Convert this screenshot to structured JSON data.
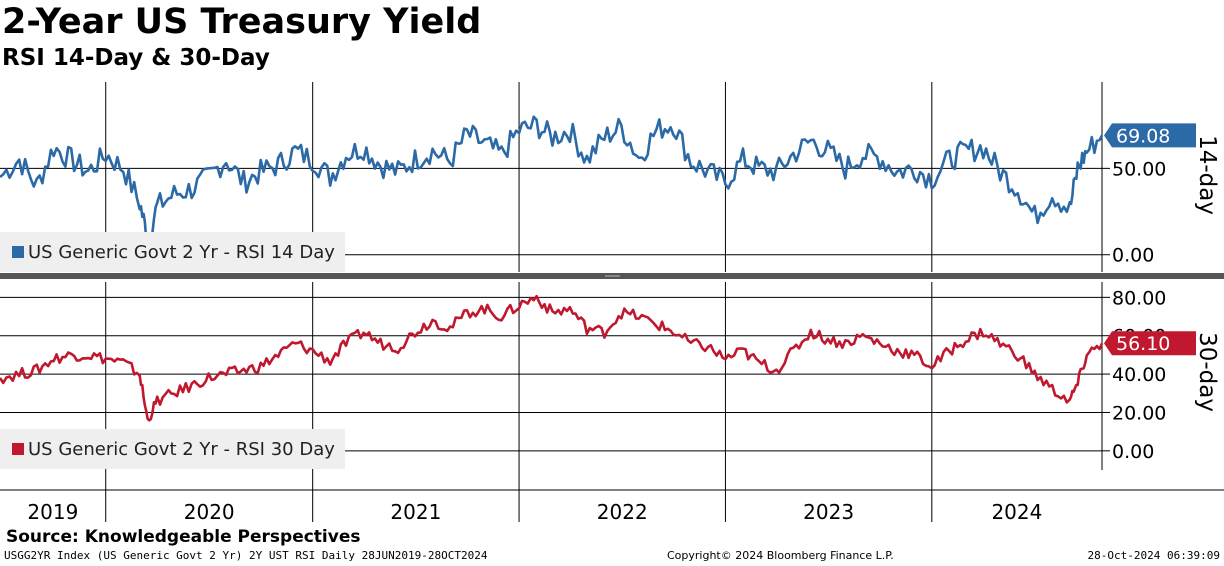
{
  "header": {
    "title": "2-Year US Treasury Yield",
    "subtitle": "RSI 14-Day & 30-Day"
  },
  "footer": {
    "source": "Source: Knowledgeable Perspectives",
    "meta": "USGG2YR Index (US Generic Govt 2 Yr) 2Y UST RSI  Daily 28JUN2019-28OCT2024",
    "copyright": "Copyright© 2024 Bloomberg Finance L.P.",
    "timestamp": "28-Oct-2024 06:39:09"
  },
  "colors": {
    "rsi14": "#2b6aa6",
    "rsi30": "#c0182e",
    "grid": "#000000"
  },
  "chart_data": [
    {
      "type": "line",
      "panel": "top",
      "ylabel": "14-day",
      "ylim": [
        -10,
        100
      ],
      "yticks": [
        0,
        50
      ],
      "ytick_labels": [
        "0.00",
        "50.00"
      ],
      "last_value": 69.08,
      "last_value_label": "69.08",
      "legend_label": "US Generic Govt 2 Yr - RSI 14 Day",
      "series": [
        {
          "name": "US Generic Govt 2 Yr - RSI 14 Day",
          "x": [
            "2019-06-28",
            "2019-08-01",
            "2019-09-01",
            "2019-10-01",
            "2019-11-01",
            "2019-12-01",
            "2020-01-01",
            "2020-02-01",
            "2020-03-01",
            "2020-03-15",
            "2020-04-01",
            "2020-05-01",
            "2020-06-01",
            "2020-07-01",
            "2020-08-01",
            "2020-09-01",
            "2020-10-01",
            "2020-11-01",
            "2020-12-01",
            "2021-01-01",
            "2021-02-01",
            "2021-03-01",
            "2021-04-01",
            "2021-05-01",
            "2021-06-01",
            "2021-07-01",
            "2021-08-01",
            "2021-09-01",
            "2021-10-01",
            "2021-11-01",
            "2021-12-01",
            "2022-01-01",
            "2022-02-01",
            "2022-03-01",
            "2022-04-01",
            "2022-05-01",
            "2022-06-01",
            "2022-07-01",
            "2022-08-01",
            "2022-09-01",
            "2022-10-01",
            "2022-11-01",
            "2022-12-01",
            "2023-01-01",
            "2023-02-01",
            "2023-03-01",
            "2023-04-01",
            "2023-05-01",
            "2023-06-01",
            "2023-07-01",
            "2023-08-01",
            "2023-09-01",
            "2023-10-01",
            "2023-11-01",
            "2023-12-01",
            "2024-01-01",
            "2024-02-01",
            "2024-03-01",
            "2024-04-01",
            "2024-05-01",
            "2024-06-01",
            "2024-07-01",
            "2024-08-01",
            "2024-09-01",
            "2024-09-15",
            "2024-10-01",
            "2024-10-28"
          ],
          "y": [
            45,
            55,
            40,
            62,
            55,
            48,
            58,
            50,
            30,
            10,
            28,
            35,
            38,
            45,
            55,
            42,
            48,
            52,
            60,
            55,
            45,
            58,
            62,
            52,
            48,
            55,
            60,
            54,
            70,
            64,
            58,
            72,
            75,
            68,
            72,
            55,
            68,
            74,
            56,
            72,
            76,
            54,
            48,
            42,
            55,
            50,
            48,
            58,
            66,
            60,
            50,
            58,
            56,
            48,
            50,
            44,
            55,
            60,
            62,
            48,
            38,
            22,
            35,
            26,
            50,
            60,
            69
          ]
        }
      ]
    },
    {
      "type": "line",
      "panel": "bottom",
      "ylabel": "30-day",
      "ylim": [
        -10,
        88
      ],
      "yticks": [
        0,
        20,
        40,
        60,
        80
      ],
      "ytick_labels": [
        "0.00",
        "20.00",
        "40.00",
        "60.00",
        "80.00"
      ],
      "last_value": 56.1,
      "last_value_label": "56.10",
      "legend_label": "US Generic Govt 2 Yr - RSI 30 Day",
      "series": [
        {
          "name": "US Generic Govt 2 Yr - RSI 30 Day",
          "x": [
            "2019-06-28",
            "2019-08-01",
            "2019-09-01",
            "2019-10-01",
            "2019-11-01",
            "2019-12-01",
            "2020-01-01",
            "2020-02-01",
            "2020-03-01",
            "2020-03-15",
            "2020-04-01",
            "2020-05-01",
            "2020-06-01",
            "2020-07-01",
            "2020-08-01",
            "2020-09-01",
            "2020-10-01",
            "2020-11-01",
            "2020-12-01",
            "2021-01-01",
            "2021-02-01",
            "2021-03-01",
            "2021-04-01",
            "2021-05-01",
            "2021-06-01",
            "2021-07-01",
            "2021-08-01",
            "2021-09-01",
            "2021-10-01",
            "2021-11-01",
            "2021-12-01",
            "2022-01-01",
            "2022-02-01",
            "2022-03-01",
            "2022-04-01",
            "2022-05-01",
            "2022-06-01",
            "2022-07-01",
            "2022-08-01",
            "2022-09-01",
            "2022-10-01",
            "2022-11-01",
            "2022-12-01",
            "2023-01-01",
            "2023-02-01",
            "2023-03-01",
            "2023-04-01",
            "2023-05-01",
            "2023-06-01",
            "2023-07-01",
            "2023-08-01",
            "2023-09-01",
            "2023-10-01",
            "2023-11-01",
            "2023-12-01",
            "2024-01-01",
            "2024-02-01",
            "2024-03-01",
            "2024-04-01",
            "2024-05-01",
            "2024-06-01",
            "2024-07-01",
            "2024-08-01",
            "2024-09-01",
            "2024-09-15",
            "2024-10-01",
            "2024-10-28"
          ],
          "y": [
            38,
            40,
            42,
            48,
            50,
            50,
            48,
            46,
            40,
            16,
            26,
            30,
            34,
            38,
            40,
            42,
            44,
            50,
            56,
            52,
            47,
            56,
            62,
            56,
            54,
            62,
            68,
            64,
            72,
            74,
            70,
            76,
            80,
            72,
            74,
            64,
            62,
            72,
            70,
            66,
            62,
            56,
            54,
            48,
            52,
            46,
            42,
            52,
            62,
            58,
            56,
            60,
            56,
            52,
            50,
            44,
            52,
            58,
            62,
            56,
            50,
            40,
            32,
            26,
            35,
            50,
            56
          ]
        }
      ]
    }
  ],
  "x_axis": {
    "labels": [
      "2019",
      "2020",
      "2021",
      "2022",
      "2023",
      "2024"
    ],
    "range": [
      "2019-06-28",
      "2024-10-28"
    ]
  }
}
